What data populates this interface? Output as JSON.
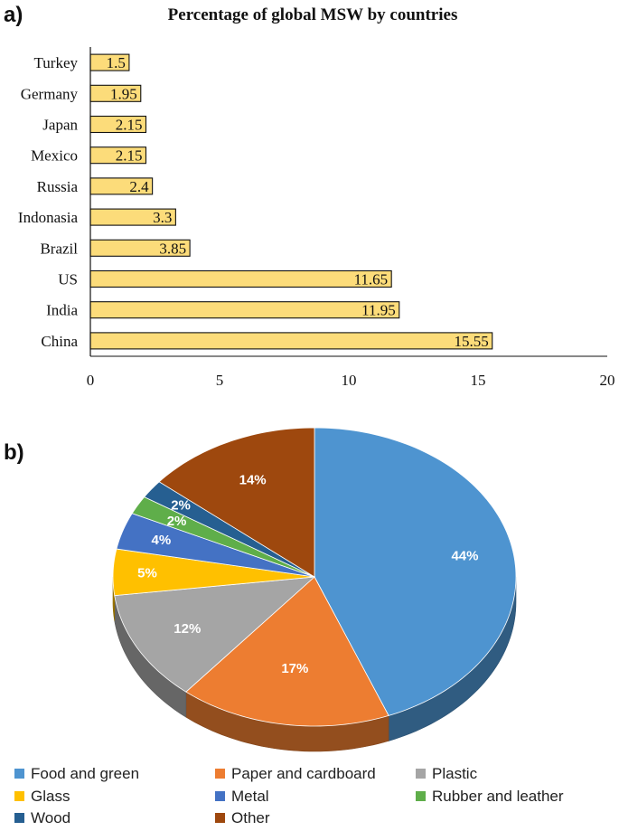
{
  "chart_data": [
    {
      "type": "bar",
      "orientation": "horizontal",
      "panel_label": "a)",
      "title": "Percentage of global MSW by countries",
      "categories": [
        "Turkey",
        "Germany",
        "Japan",
        "Mexico",
        "Russia",
        "Indonasia",
        "Brazil",
        "US",
        "India",
        "China"
      ],
      "values": [
        1.5,
        1.95,
        2.15,
        2.15,
        2.4,
        3.3,
        3.85,
        11.65,
        11.95,
        15.55
      ],
      "data_labels": [
        "1.5",
        "1.95",
        "2.15",
        "2.15",
        "2.4",
        "3.3",
        "3.85",
        "11.65",
        "11.95",
        "15.55"
      ],
      "xlabel": "",
      "ylabel": "",
      "xlim": [
        0,
        20
      ],
      "xticks": [
        "0",
        "5",
        "10",
        "15",
        "20"
      ],
      "grid": false,
      "bar_color": "#FCDC7A",
      "bar_edge_color": "#111111"
    },
    {
      "type": "pie",
      "style": "3d",
      "panel_label": "b)",
      "title": "",
      "slices": [
        {
          "name": "Food and green",
          "value": 44,
          "label": "44%",
          "color": "#4E94D0"
        },
        {
          "name": "Paper and cardboard",
          "value": 17,
          "label": "17%",
          "color": "#ED7D31"
        },
        {
          "name": "Plastic",
          "value": 12,
          "label": "12%",
          "color": "#A5A5A5"
        },
        {
          "name": "Glass",
          "value": 5,
          "label": "5%",
          "color": "#FFC000"
        },
        {
          "name": "Metal",
          "value": 4,
          "label": "4%",
          "color": "#4472C4"
        },
        {
          "name": "Rubber and leather",
          "value": 2,
          "label": "2%",
          "color": "#5FAE4A"
        },
        {
          "name": "Wood",
          "value": 2,
          "label": "2%",
          "color": "#265F91"
        },
        {
          "name": "Other",
          "value": 14,
          "label": "14%",
          "color": "#9E480E"
        }
      ],
      "legend_placement": "bottom"
    }
  ]
}
